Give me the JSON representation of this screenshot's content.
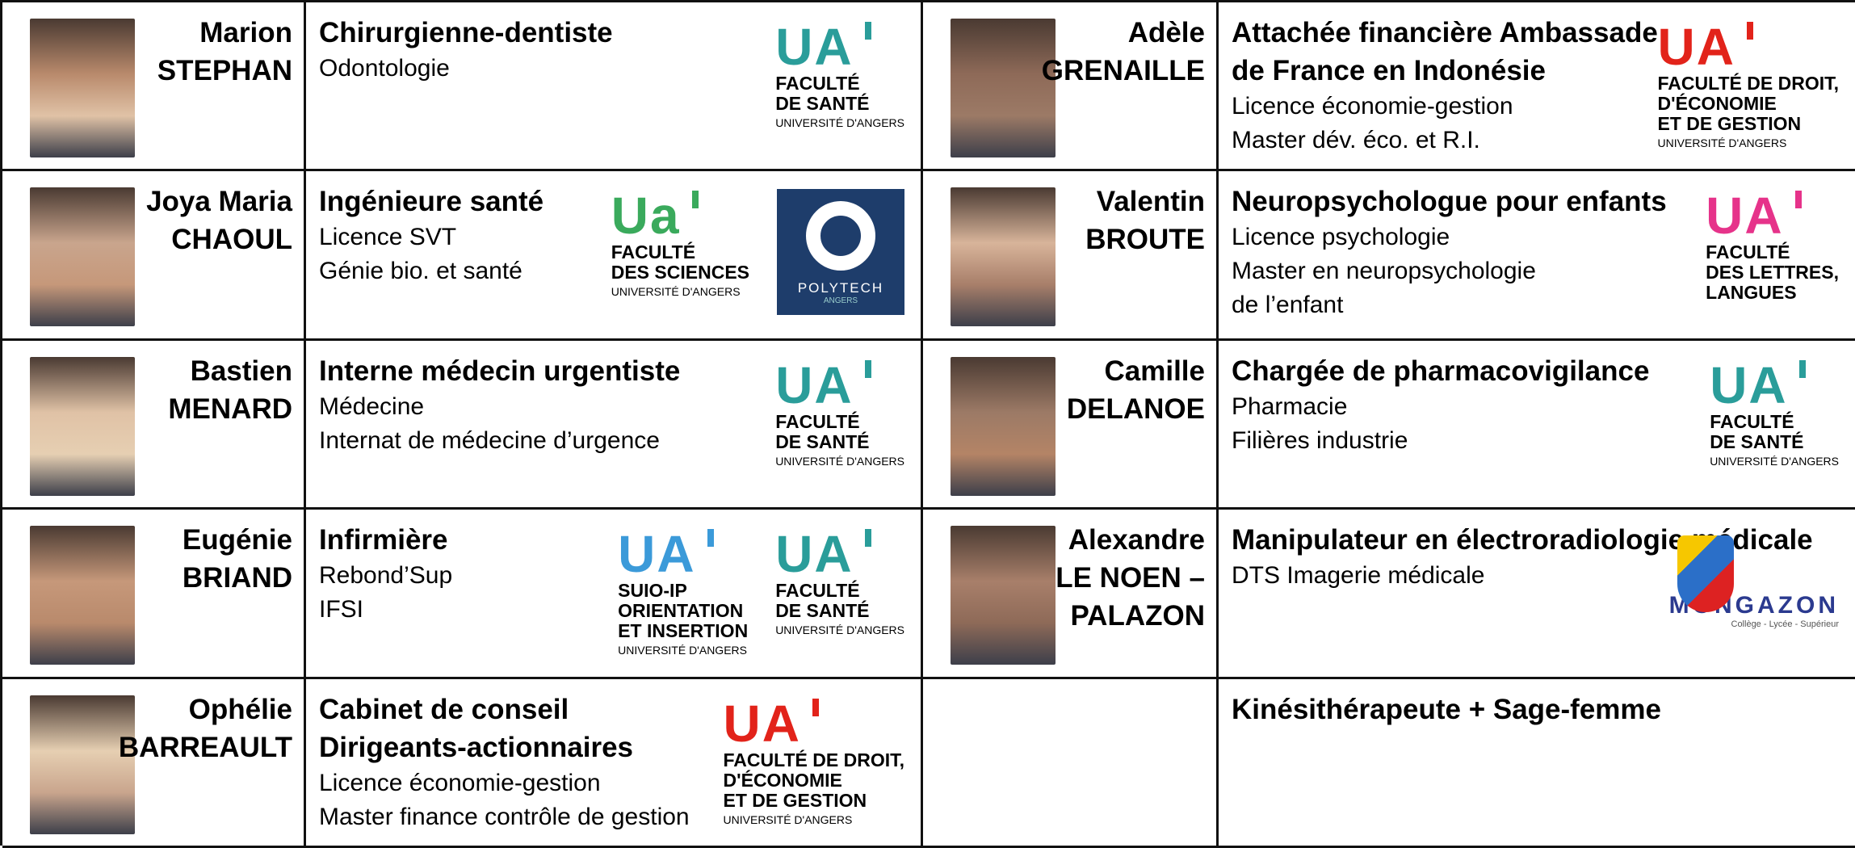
{
  "rows": [
    {
      "left": {
        "name": [
          "Marion",
          "STEPHAN"
        ],
        "job": [
          "Chirurgienne-dentiste"
        ],
        "details": [
          "Odontologie"
        ],
        "logos": [
          {
            "style": "ua",
            "mark": "UA",
            "color": "#2a9d9a",
            "lines": [
              "FACULTÉ",
              "DE SANTÉ"
            ],
            "sub": "UNIVERSITÉ D'ANGERS"
          }
        ]
      },
      "right": {
        "name": [
          "Adèle",
          "GRENAILLE"
        ],
        "job": [
          "Attachée financière Ambassade",
          "de France en Indonésie"
        ],
        "details": [
          "Licence économie-gestion",
          "Master dév. éco. et R.I."
        ],
        "logos": [
          {
            "style": "ua",
            "mark": "UA",
            "color": "#e2231a",
            "lines": [
              "FACULTÉ DE DROIT,",
              "D'ÉCONOMIE",
              "ET DE GESTION"
            ],
            "sub": "UNIVERSITÉ D'ANGERS"
          }
        ]
      }
    },
    {
      "left": {
        "name": [
          "Joya Maria",
          "CHAOUL"
        ],
        "job": [
          "Ingénieure santé"
        ],
        "details": [
          "Licence SVT",
          "Génie bio. et santé"
        ],
        "logos": [
          {
            "style": "ua",
            "mark": "Ua",
            "color": "#3aaa5c",
            "lines": [
              "FACULTÉ",
              "DES SCIENCES"
            ],
            "sub": "UNIVERSITÉ D'ANGERS"
          },
          {
            "style": "box",
            "color": "#1e3d6b",
            "lines": [
              "POLYTECH"
            ],
            "sub": "ANGERS"
          }
        ]
      },
      "right": {
        "name": [
          "Valentin",
          "BROUTE"
        ],
        "job": [
          "Neuropsychologue pour enfants"
        ],
        "details": [
          "Licence psychologie",
          "Master en neuropsychologie",
          "de l’enfant"
        ],
        "logos": [
          {
            "style": "ua",
            "mark": "UA",
            "color": "#e6338a",
            "lines": [
              "FACULTÉ",
              "DES LETTRES,",
              "LANGUES"
            ]
          }
        ]
      }
    },
    {
      "left": {
        "name": [
          "Bastien",
          "MENARD"
        ],
        "job": [
          "Interne médecin urgentiste"
        ],
        "details": [
          "Médecine",
          "Internat de médecine d’urgence"
        ],
        "logos": [
          {
            "style": "ua",
            "mark": "UA",
            "color": "#2a9d9a",
            "lines": [
              "FACULTÉ",
              "DE SANTÉ"
            ],
            "sub": "UNIVERSITÉ D'ANGERS"
          }
        ]
      },
      "right": {
        "name": [
          "Camille",
          "DELANOE"
        ],
        "job": [
          "Chargée de pharmacovigilance"
        ],
        "details": [
          "Pharmacie",
          "Filières industrie"
        ],
        "logos": [
          {
            "style": "ua",
            "mark": "UA",
            "color": "#2a9d9a",
            "lines": [
              "FACULTÉ",
              "DE SANTÉ"
            ],
            "sub": "UNIVERSITÉ D'ANGERS"
          }
        ]
      }
    },
    {
      "left": {
        "name": [
          "Eugénie",
          "BRIAND"
        ],
        "job": [
          "Infirmière"
        ],
        "details": [
          "Rebond’Sup",
          "IFSI"
        ],
        "logos": [
          {
            "style": "ua",
            "mark": "UA",
            "color": "#3b9ad9",
            "lines": [
              "SUIO-IP",
              "ORIENTATION",
              "ET INSERTION"
            ],
            "sub": "UNIVERSITÉ D'ANGERS"
          },
          {
            "style": "ua",
            "mark": "UA",
            "color": "#2a9d9a",
            "lines": [
              "FACULTÉ",
              "DE SANTÉ"
            ],
            "sub": "UNIVERSITÉ D'ANGERS"
          }
        ]
      },
      "right": {
        "name": [
          "Alexandre",
          "LE NOEN –",
          "PALAZON"
        ],
        "job": [
          "Manipulateur en électroradiologie médicale"
        ],
        "details": [
          "DTS Imagerie médicale"
        ],
        "logos": [
          {
            "style": "badge",
            "color": "#2b3a8f",
            "lines": [
              "MONGAZON"
            ],
            "sub": "Collège - Lycée - Supérieur"
          }
        ]
      }
    },
    {
      "left": {
        "name": [
          "Ophélie",
          "BARREAULT"
        ],
        "job": [
          "Cabinet de conseil",
          "Dirigeants-actionnaires"
        ],
        "details": [
          "Licence économie-gestion",
          "Master finance contrôle de gestion"
        ],
        "logos": [
          {
            "style": "ua",
            "mark": "UA",
            "color": "#e2231a",
            "lines": [
              "FACULTÉ DE DROIT,",
              "D'ÉCONOMIE",
              "ET DE GESTION"
            ],
            "sub": "UNIVERSITÉ D'ANGERS"
          }
        ]
      },
      "right": {
        "job": [
          "Kinésithérapeute + Sage-femme"
        ],
        "details": [],
        "logos": []
      }
    }
  ]
}
